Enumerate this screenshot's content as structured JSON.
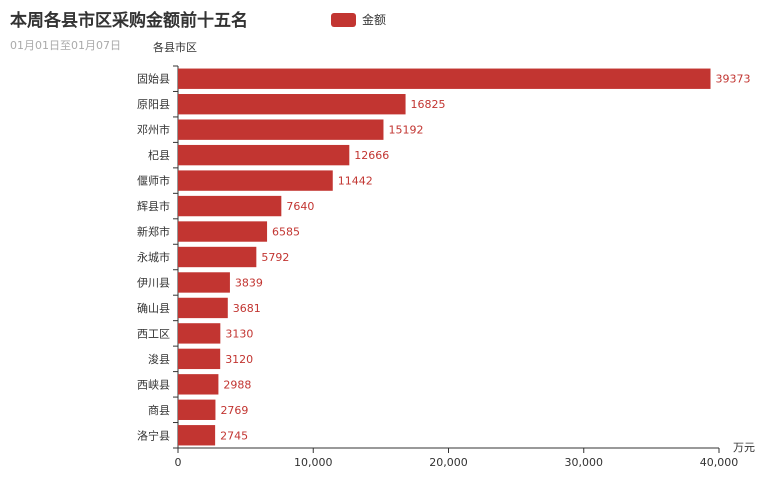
{
  "header": {
    "title": "本周各县市区采购金额前十五名",
    "subtitle": "01月01日至01月07日"
  },
  "legend": {
    "label": "金额",
    "color": "#c23531"
  },
  "chart_data": {
    "type": "bar",
    "orientation": "horizontal",
    "title": "本周各县市区采购金额前十五名",
    "subtitle": "01月01日至01月07日",
    "ylabel": "各县市区",
    "xlabel": "万元",
    "xlim": [
      0,
      40000
    ],
    "xticks": [
      "0",
      "10,000",
      "20,000",
      "30,000",
      "40,000"
    ],
    "grid": false,
    "legend_position": "top",
    "categories": [
      "固始县",
      "原阳县",
      "邓州市",
      "杞县",
      "偃师市",
      "辉县市",
      "新郑市",
      "永城市",
      "伊川县",
      "确山县",
      "西工区",
      "浚县",
      "西峡县",
      "商县",
      "洛宁县"
    ],
    "series": [
      {
        "name": "金额",
        "color": "#c23531",
        "values": [
          39373,
          16825,
          15192,
          12666,
          11442,
          7640,
          6585,
          5792,
          3839,
          3681,
          3130,
          3120,
          2988,
          2769,
          2745
        ]
      }
    ]
  }
}
